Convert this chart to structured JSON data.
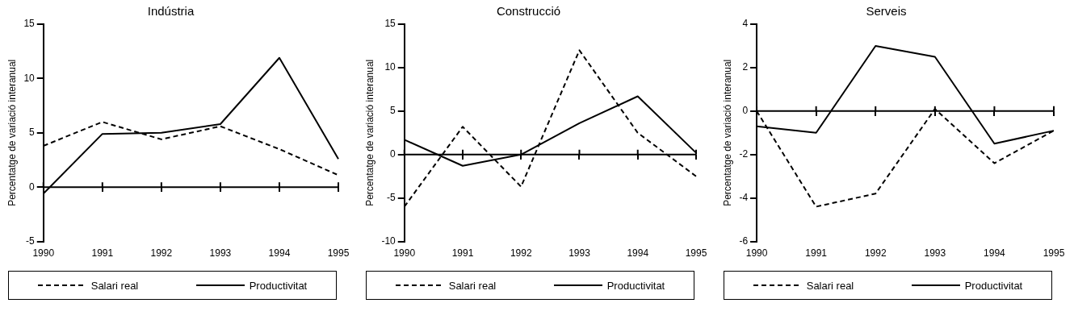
{
  "chart_data": [
    {
      "type": "line",
      "title": "Indústria",
      "ylabel": "Percentatge de variació interanual",
      "categories": [
        "1990",
        "1991",
        "1992",
        "1993",
        "1994",
        "1995"
      ],
      "ylim": [
        -5,
        15
      ],
      "yticks": [
        -5,
        0,
        5,
        10,
        15
      ],
      "grid": false,
      "ref_lines": [
        {
          "axis": "y",
          "value": 0,
          "color": "#000000"
        }
      ],
      "legend": "bottom",
      "marker": "none",
      "series": [
        {
          "name": "Salari real",
          "color": "#000000",
          "line_style": "dashed",
          "values": [
            3.8,
            6,
            4.4,
            5.6,
            3.5,
            1.1
          ]
        },
        {
          "name": "Productivitat",
          "color": "#000000",
          "line_style": "solid",
          "values": [
            -0.6,
            4.9,
            5.0,
            5.8,
            11.9,
            2.6
          ]
        }
      ]
    },
    {
      "type": "line",
      "title": "Construcció",
      "ylabel": "Percentatge de variació interanual",
      "categories": [
        "1990",
        "1991",
        "1992",
        "1993",
        "1994",
        "1995"
      ],
      "ylim": [
        -10,
        15
      ],
      "yticks": [
        -10,
        -5,
        0,
        5,
        10,
        15
      ],
      "grid": false,
      "ref_lines": [
        {
          "axis": "y",
          "value": 0,
          "color": "#000000"
        }
      ],
      "legend": "bottom",
      "marker": "none",
      "series": [
        {
          "name": "Salari real",
          "color": "#000000",
          "line_style": "dashed",
          "values": [
            -6,
            3.2,
            -3.7,
            12,
            2.5,
            -2.5
          ]
        },
        {
          "name": "Productivitat",
          "color": "#000000",
          "line_style": "solid",
          "values": [
            1.7,
            -1.3,
            0,
            3.6,
            6.7,
            0.2
          ]
        }
      ]
    },
    {
      "type": "line",
      "title": "Serveis",
      "ylabel": "Percentatge de variació interanual",
      "categories": [
        "1990",
        "1991",
        "1992",
        "1993",
        "1994",
        "1995"
      ],
      "ylim": [
        -6,
        4
      ],
      "yticks": [
        -6,
        -4,
        -2,
        0,
        2,
        4
      ],
      "grid": false,
      "ref_lines": [
        {
          "axis": "y",
          "value": 0,
          "color": "#000000"
        }
      ],
      "legend": "bottom",
      "marker": "none",
      "series": [
        {
          "name": "Salari real",
          "color": "#000000",
          "line_style": "dashed",
          "values": [
            0,
            -4.4,
            -3.8,
            0.1,
            -2.4,
            -0.9
          ]
        },
        {
          "name": "Productivitat",
          "color": "#000000",
          "line_style": "solid",
          "values": [
            -0.7,
            -1,
            3,
            2.5,
            -1.5,
            -0.9
          ]
        }
      ]
    }
  ]
}
